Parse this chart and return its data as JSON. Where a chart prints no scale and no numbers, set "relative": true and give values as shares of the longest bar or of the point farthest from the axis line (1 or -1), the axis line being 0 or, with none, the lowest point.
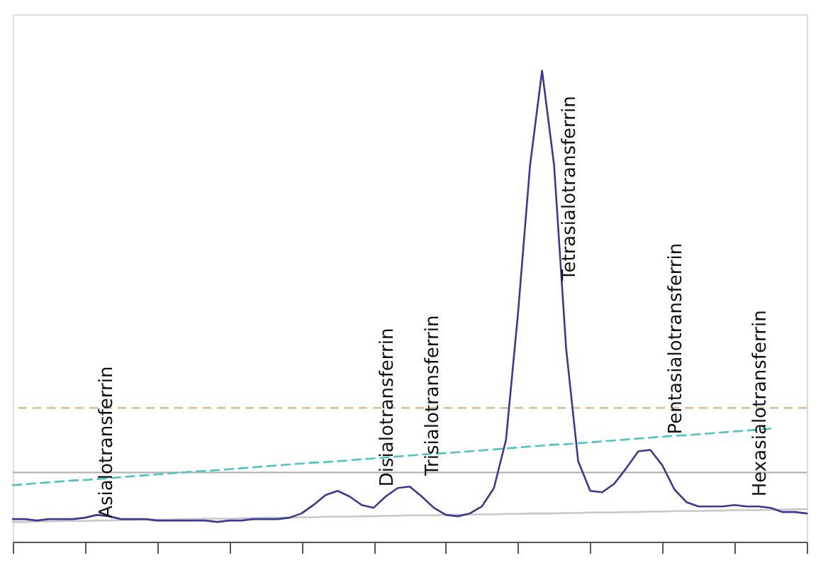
{
  "chart_data": {
    "type": "line",
    "relative": true,
    "grid": false,
    "categories": [
      null,
      null,
      null,
      null,
      null,
      null,
      null,
      null,
      null,
      null,
      null,
      null,
      null,
      null,
      null,
      null,
      null,
      null,
      null,
      null,
      null,
      null,
      null,
      null,
      null,
      null,
      null,
      null,
      null,
      null,
      null,
      null,
      null,
      null,
      null,
      null,
      null,
      null,
      null,
      null,
      null,
      null,
      null,
      null,
      null,
      null,
      null,
      null,
      null,
      null,
      null,
      null,
      null,
      null,
      null,
      null,
      null,
      null,
      null,
      null,
      null,
      null,
      null,
      null,
      null,
      null,
      null
    ],
    "series": [
      {
        "color": "#3a3a94",
        "line_style": "solid",
        "values": [
          0.048,
          0.048,
          0.045,
          0.048,
          0.048,
          0.048,
          0.051,
          0.057,
          0.054,
          0.048,
          0.048,
          0.048,
          0.045,
          0.045,
          0.045,
          0.045,
          0.045,
          0.042,
          0.045,
          0.045,
          0.048,
          0.048,
          0.048,
          0.051,
          0.06,
          0.078,
          0.099,
          0.108,
          0.096,
          0.078,
          0.072,
          0.096,
          0.114,
          0.117,
          0.096,
          0.072,
          0.057,
          0.054,
          0.06,
          0.075,
          0.114,
          0.216,
          0.485,
          0.799,
          1.0,
          0.799,
          0.41,
          0.171,
          0.108,
          0.105,
          0.123,
          0.156,
          0.192,
          0.195,
          0.162,
          0.111,
          0.084,
          0.075,
          0.075,
          0.075,
          0.078,
          0.075,
          0.075,
          0.072,
          0.063,
          0.063,
          0.06
        ]
      },
      {
        "color": "#4cc4c4",
        "line_style": "dashed",
        "values": [
          0.12,
          0.122,
          0.124,
          0.126,
          0.128,
          0.13,
          0.131,
          0.133,
          0.135,
          0.137,
          0.139,
          0.141,
          0.143,
          0.145,
          0.147,
          0.149,
          0.15,
          0.152,
          0.154,
          0.156,
          0.158,
          0.16,
          0.162,
          0.164,
          0.166,
          0.168,
          0.169,
          0.171,
          0.173,
          0.175,
          0.177,
          0.179,
          0.181,
          0.183,
          0.185,
          0.187,
          0.188,
          0.19,
          0.192,
          0.194,
          0.196,
          0.198,
          0.2,
          0.202,
          0.204,
          0.206,
          0.207,
          0.209,
          0.211,
          0.213,
          0.215,
          0.217,
          0.219,
          0.221,
          0.223,
          0.225,
          0.226,
          0.228,
          0.23,
          0.232,
          0.234,
          0.236,
          0.238,
          0.24,
          null,
          null,
          null
        ]
      },
      {
        "color": "#c8c8c8",
        "line_style": "solid",
        "values": [
          0.042,
          0.042,
          0.043,
          0.043,
          0.044,
          0.044,
          0.044,
          0.045,
          0.045,
          0.046,
          0.046,
          0.047,
          0.047,
          0.047,
          0.048,
          0.048,
          0.049,
          0.049,
          0.049,
          0.05,
          0.05,
          0.051,
          0.051,
          0.051,
          0.052,
          0.052,
          0.053,
          0.053,
          0.053,
          0.054,
          0.054,
          0.055,
          0.055,
          0.056,
          0.056,
          0.056,
          0.057,
          0.057,
          0.058,
          0.058,
          0.058,
          0.059,
          0.059,
          0.06,
          0.06,
          0.06,
          0.061,
          0.061,
          0.062,
          0.062,
          0.062,
          0.063,
          0.063,
          0.064,
          0.064,
          0.065,
          0.065,
          0.065,
          0.066,
          0.066,
          0.067,
          0.067,
          0.067,
          0.068,
          0.068,
          0.069,
          0.069
        ]
      }
    ],
    "ref_lines": [
      {
        "axis": "y",
        "value": 0.284,
        "color": "#d8b48e",
        "line_style": "dashed"
      },
      {
        "axis": "y",
        "value": 0.147,
        "color": "#b4b4b4",
        "line_style": "solid"
      }
    ],
    "annotations": [
      "Asialotransferrin",
      "Disialotransferrin",
      "Trisialotransferrin",
      "Tetrasialotransferrin",
      "Pentasialotransferrin",
      "Hexasialotransferrin"
    ]
  }
}
